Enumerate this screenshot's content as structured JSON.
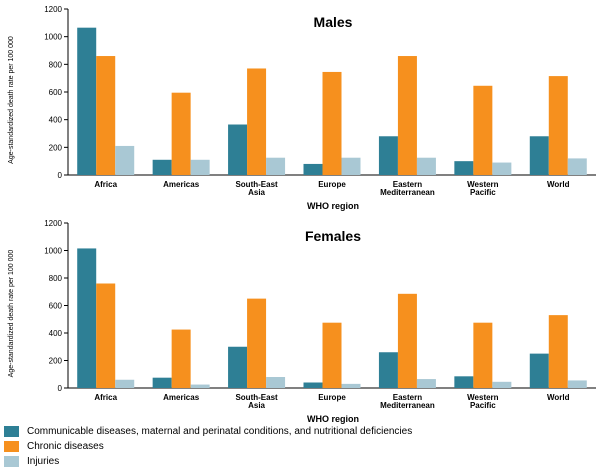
{
  "colors": {
    "communicable": "#2e7f95",
    "chronic": "#f6901e",
    "injuries": "#a9c8d4"
  },
  "legend": [
    {
      "label": "Communicable diseases, maternal and perinatal conditions, and nutritional deficiencies",
      "color_key": "communicable"
    },
    {
      "label": "Chronic diseases",
      "color_key": "chronic"
    },
    {
      "label": "Injuries",
      "color_key": "injuries"
    }
  ],
  "chart_data": [
    {
      "type": "bar",
      "title": "Males",
      "xlabel": "WHO region",
      "ylabel": "Age-standardized death rate per 100 000",
      "ylim": [
        0,
        1200
      ],
      "yticks": [
        0,
        200,
        400,
        600,
        800,
        1000,
        1200
      ],
      "categories": [
        "Africa",
        "Americas",
        "South-East Asia",
        "Europe",
        "Eastern Mediterranean",
        "Western Pacific",
        "World"
      ],
      "category_lines": [
        [
          "Africa"
        ],
        [
          "Americas"
        ],
        [
          "South-East",
          "Asia"
        ],
        [
          "Europe"
        ],
        [
          "Eastern",
          "Mediterranean"
        ],
        [
          "Western",
          "Pacific"
        ],
        [
          "World"
        ]
      ],
      "grid": false,
      "series": [
        {
          "name": "Communicable diseases, maternal and perinatal conditions, and nutritional deficiencies",
          "color_key": "communicable",
          "values": [
            1065,
            110,
            365,
            80,
            280,
            100,
            280
          ]
        },
        {
          "name": "Chronic diseases",
          "color_key": "chronic",
          "values": [
            860,
            595,
            770,
            745,
            860,
            645,
            715
          ]
        },
        {
          "name": "Injuries",
          "color_key": "injuries",
          "values": [
            210,
            110,
            125,
            125,
            125,
            90,
            120
          ]
        }
      ]
    },
    {
      "type": "bar",
      "title": "Females",
      "xlabel": "WHO region",
      "ylabel": "Age-standardized death rate per 100 000",
      "ylim": [
        0,
        1200
      ],
      "yticks": [
        0,
        200,
        400,
        600,
        800,
        1000,
        1200
      ],
      "categories": [
        "Africa",
        "Americas",
        "South-East Asia",
        "Europe",
        "Eastern Mediterranean",
        "Western Pacific",
        "World"
      ],
      "category_lines": [
        [
          "Africa"
        ],
        [
          "Americas"
        ],
        [
          "South-East",
          "Asia"
        ],
        [
          "Europe"
        ],
        [
          "Eastern",
          "Mediterranean"
        ],
        [
          "Western",
          "Pacific"
        ],
        [
          "World"
        ]
      ],
      "grid": false,
      "series": [
        {
          "name": "Communicable diseases, maternal and perinatal conditions, and nutritional deficiencies",
          "color_key": "communicable",
          "values": [
            1015,
            75,
            300,
            40,
            260,
            85,
            250
          ]
        },
        {
          "name": "Chronic diseases",
          "color_key": "chronic",
          "values": [
            760,
            425,
            650,
            475,
            685,
            475,
            530
          ]
        },
        {
          "name": "Injuries",
          "color_key": "injuries",
          "values": [
            60,
            25,
            80,
            30,
            65,
            45,
            55
          ]
        }
      ]
    }
  ]
}
